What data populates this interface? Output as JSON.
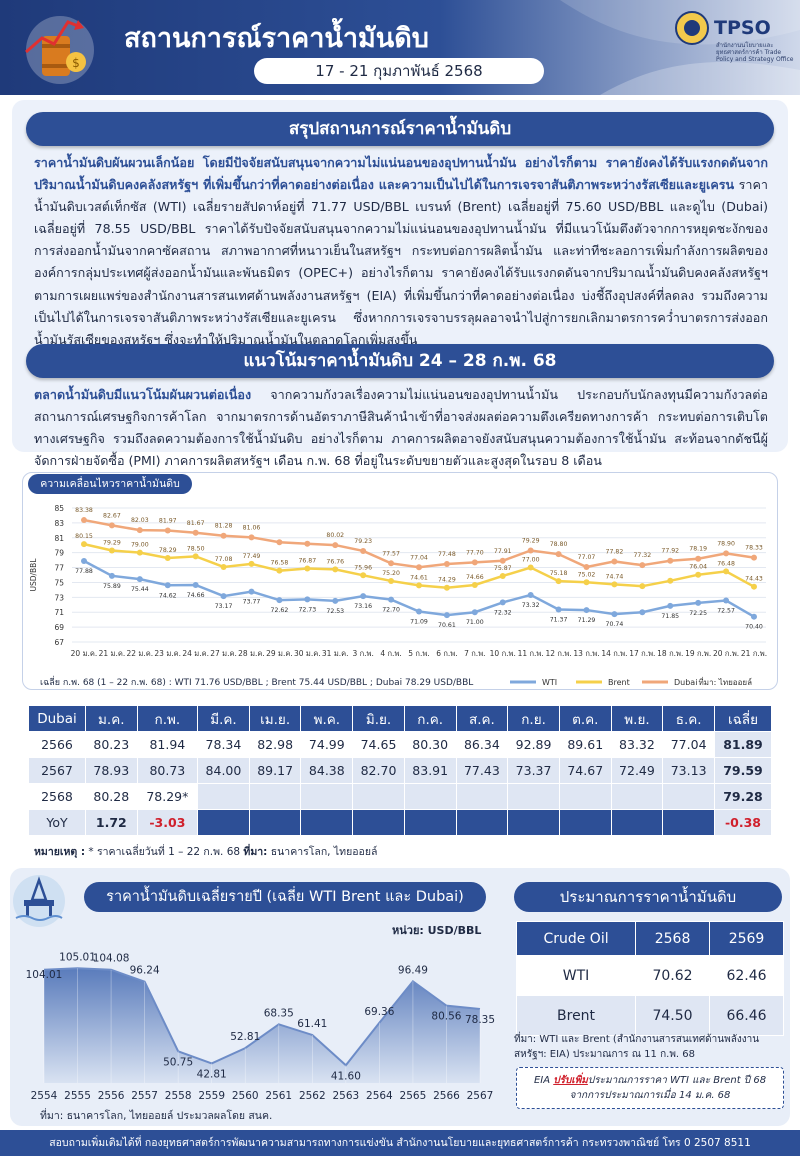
{
  "header": {
    "title": "สถานการณ์ราคาน้ำมันดิบ",
    "date_range": "17 - 21 กุมภาพันธ์ 2568",
    "org_name": "TPSO",
    "org_sub": "สำนักงานนโยบายและยุทธศาสตร์การค้า Trade Policy and Strategy Office"
  },
  "summary": {
    "heading": "สรุปสถานการณ์ราคาน้ำมันดิบ",
    "lead": "ราคาน้ำมันดิบผันผวนเล็กน้อย โดยมีปัจจัยสนับสนุนจากความไม่แน่นอนของอุปทานน้ำมัน อย่างไรก็ตาม ราคายังคงได้รับแรงกดดันจากปริมาณน้ำมันดิบคงคลังสหรัฐฯ ที่เพิ่มขึ้นกว่าที่คาดอย่างต่อเนื่อง และความเป็นไปได้ในการเจรจาสันติภาพระหว่างรัสเซียและยูเครน",
    "body": " ราคาน้ำมันดิบเวสต์เท็กซัส (WTI) เฉลี่ยรายสัปดาห์อยู่ที่ 71.77 USD/BBL เบรนท์ (Brent) เฉลี่ยอยู่ที่ 75.60 USD/BBL และดูไบ (Dubai) เฉลี่ยอยู่ที่ 78.55 USD/BBL ราคาได้รับปัจจัยสนับสนุนจากความไม่แน่นอนของอุปทานน้ำมัน ที่มีแนวโน้มตึงตัวจากการหยุดชะงักของการส่งออกน้ำมันจากคาซัคสถาน สภาพอากาศที่หนาวเย็นในสหรัฐฯ กระทบต่อการผลิตน้ำมัน และท่าทีชะลอการเพิ่มกำลังการผลิตขององค์การกลุ่มประเทศผู้ส่งออกน้ำมันและพันธมิตร (OPEC+) อย่างไรก็ตาม ราคายังคงได้รับแรงกดดันจากปริมาณน้ำมันดิบคงคลังสหรัฐฯ ตามการเผยแพร่ของสำนักงานสารสนเทศด้านพลังงานสหรัฐฯ (EIA) ที่เพิ่มขึ้นกว่าที่คาดอย่างต่อเนื่อง บ่งชี้ถึงอุปสงค์ที่ลดลง รวมถึงความเป็นไปได้ในการเจรจาสันติภาพระหว่างรัสเซียและยูเครน ซึ่งหากการเจรจาบรรลุผลอาจนำไปสู่การยกเลิกมาตรการคว่ำบาตรการส่งออกน้ำมันรัสเซียของสหรัฐฯ ซึ่งจะทำให้ปริมาณน้ำมันในตลาดโลกเพิ่มสูงขึ้น"
  },
  "trend": {
    "heading": "แนวโน้มราคาน้ำมันดิบ 24 – 28 ก.พ. 68",
    "lead": "ตลาดน้ำมันดิบมีแนวโน้มผันผวนต่อเนื่อง",
    "body": " จากความกังวลเรื่องความไม่แน่นอนของอุปทานน้ำมัน ประกอบกับนักลงทุนมีความกังวลต่อสถานการณ์เศรษฐกิจการค้าโลก จากมาตรการด้านอัตราภาษีสินค้านำเข้าที่อาจส่งผลต่อความตึงเครียดทางการค้า กระทบต่อการเติบโตทางเศรษฐกิจ รวมถึงลดความต้องการใช้น้ำมันดิบ อย่างไรก็ตาม ภาคการผลิตอาจยังสนับสนุนความต้องการใช้น้ำมัน สะท้อนจากดัชนีผู้จัดการฝ่ายจัดซื้อ (PMI) ภาคการผลิตสหรัฐฯ เดือน ก.พ. 68 ที่อยู่ในระดับขยายตัวและสูงสุดในรอบ 8 เดือน"
  },
  "chart_note": "เฉลี่ย ก.พ. 68 (1 – 22 ก.พ. 68) : WTI 71.76 USD/BBL ; Brent 75.44 USD/BBL ; Dubai 78.29 USD/BBL",
  "chart_source": "ที่มา: ไทยออยล์",
  "dubai_table": {
    "headers": [
      "Dubai",
      "ม.ค.",
      "ก.พ.",
      "มี.ค.",
      "เม.ย.",
      "พ.ค.",
      "มิ.ย.",
      "ก.ค.",
      "ส.ค.",
      "ก.ย.",
      "ต.ค.",
      "พ.ย.",
      "ธ.ค.",
      "เฉลี่ย"
    ],
    "rows": [
      [
        "2566",
        "80.23",
        "81.94",
        "78.34",
        "82.98",
        "74.99",
        "74.65",
        "80.30",
        "86.34",
        "92.89",
        "89.61",
        "83.32",
        "77.04",
        "81.89"
      ],
      [
        "2567",
        "78.93",
        "80.73",
        "84.00",
        "89.17",
        "84.38",
        "82.70",
        "83.91",
        "77.43",
        "73.37",
        "74.67",
        "72.49",
        "73.13",
        "79.59"
      ],
      [
        "2568",
        "80.28",
        "78.29*",
        "",
        "",
        "",
        "",
        "",
        "",
        "",
        "",
        "",
        "",
        "79.28"
      ],
      [
        "YoY",
        "1.72",
        "-3.03",
        "",
        "",
        "",
        "",
        "",
        "",
        "",
        "",
        "",
        "",
        "-0.38"
      ]
    ],
    "note_label": "หมายเหตุ :",
    "note_text": " * ราคาเฉลี่ยวันที่ 1 – 22 ก.พ. 68 ",
    "source_label": "ที่มา:",
    "source_text": " ธนาคารโลก, ไทยออยล์"
  },
  "annual": {
    "heading": "ราคาน้ำมันดิบเฉลี่ยรายปี (เฉลี่ย WTI Brent และ Dubai)",
    "unit": "หน่วย: USD/BBL",
    "source": "ที่มา: ธนาคารโลก, ไทยออยล์ ประมวลผลโดย สนค."
  },
  "estimate": {
    "heading": "ประมาณการราคาน้ำมันดิบ",
    "headers": [
      "Crude Oil",
      "2568",
      "2569"
    ],
    "rows": [
      [
        "WTI",
        "70.62",
        "62.46"
      ],
      [
        "Brent",
        "74.50",
        "66.46"
      ]
    ],
    "source": "ที่มา: WTI และ Brent (สำนักงานสารสนเทศด้านพลังงานสหรัฐฯ: EIA) ประมาณการ ณ 11 ก.พ. 68",
    "eia_pre": "EIA ",
    "eia_hl": "ปรับเพิ่ม",
    "eia_post": "ประมาณการราคา WTI และ Brent ปี 68",
    "eia_line2": "จากการประมาณการเมื่อ 14 ม.ค. 68"
  },
  "footer": "สอบถามเพิ่มเติมได้ที่ กองยุทธศาสตร์การพัฒนาความสามารถทางการแข่งขัน สำนักงานนโยบายและยุทธศาสตร์การค้า กระทรวงพาณิชย์ โทร 0 2507 8511",
  "colors": {
    "wti": "#7fa8dc",
    "brent": "#f5d04a",
    "dubai": "#f0a77a",
    "navy": "#2d4f96",
    "negative": "#d0202c"
  },
  "chart_data": [
    {
      "type": "line",
      "title": "ความเคลื่อนไหวราคาน้ำมันดิบ",
      "ylabel": "USD/BBL",
      "ylim": [
        67,
        85
      ],
      "yticks": [
        67,
        69,
        71,
        73,
        75,
        77,
        79,
        81,
        83,
        85
      ],
      "legend": "bottom-right",
      "grid": true,
      "categories": [
        "20 ม.ค.",
        "21 ม.ค.",
        "22 ม.ค.",
        "23 ม.ค.",
        "24 ม.ค.",
        "27 ม.ค.",
        "28 ม.ค.",
        "29 ม.ค.",
        "30 ม.ค.",
        "31 ม.ค.",
        "3 ก.พ.",
        "4 ก.พ.",
        "5 ก.พ.",
        "6 ก.พ.",
        "7 ก.พ.",
        "10 ก.พ.",
        "11 ก.พ.",
        "12 ก.พ.",
        "13 ก.พ.",
        "14 ก.พ.",
        "17 ก.พ.",
        "18 ก.พ.",
        "19 ก.พ.",
        "20 ก.พ.",
        "21 ก.พ."
      ],
      "series": [
        {
          "name": "WTI",
          "values": [
            77.88,
            75.89,
            75.44,
            74.62,
            74.66,
            73.17,
            73.77,
            72.62,
            72.73,
            72.53,
            73.16,
            72.7,
            71.09,
            70.61,
            71.0,
            72.32,
            73.32,
            71.37,
            71.29,
            70.74,
            71.0,
            71.85,
            72.25,
            72.57,
            70.4
          ],
          "labels": [
            "77.88",
            "75.89",
            "75.44",
            "74.62",
            "74.66",
            "73.17",
            "73.77",
            "72.62",
            "72.73",
            "72.53",
            "73.16",
            "72.70",
            "71.09",
            "70.61",
            "71.00",
            "72.32",
            "73.32",
            "71.37",
            "71.29",
            "70.74",
            "",
            "71.85",
            "72.25",
            "72.57",
            "70.40"
          ]
        },
        {
          "name": "Brent",
          "values": [
            80.15,
            79.29,
            79.0,
            78.29,
            78.5,
            77.08,
            77.49,
            76.58,
            76.87,
            76.76,
            75.96,
            75.2,
            74.61,
            74.29,
            74.66,
            75.87,
            77.0,
            75.18,
            75.02,
            74.74,
            74.5,
            75.22,
            76.04,
            76.48,
            74.43
          ],
          "labels": [
            "80.15",
            "79.29",
            "79.00",
            "78.29",
            "78.50",
            "77.08",
            "77.49",
            "76.58",
            "76.87",
            "76.76",
            "75.96",
            "75.20",
            "74.61",
            "74.29",
            "74.66",
            "75.87",
            "77.00",
            "75.18",
            "75.02",
            "74.74",
            "",
            "",
            "76.04",
            "76.48",
            "74.43"
          ]
        },
        {
          "name": "Dubai",
          "values": [
            83.38,
            82.67,
            82.03,
            81.97,
            81.67,
            81.28,
            81.06,
            80.4,
            80.2,
            80.02,
            79.23,
            77.57,
            77.04,
            77.48,
            77.7,
            77.91,
            79.29,
            78.8,
            77.07,
            77.82,
            77.32,
            77.92,
            78.19,
            78.9,
            78.33
          ],
          "labels": [
            "83.38",
            "82.67",
            "82.03",
            "81.97",
            "81.67",
            "81.28",
            "81.06",
            "",
            "",
            "80.02",
            "79.23",
            "77.57",
            "77.04",
            "77.48",
            "77.70",
            "77.91",
            "79.29",
            "78.80",
            "77.07",
            "77.82",
            "77.32",
            "77.92",
            "78.19",
            "78.90",
            "78.33"
          ]
        }
      ]
    },
    {
      "type": "area",
      "title": "ราคาน้ำมันดิบเฉลี่ยรายปี (เฉลี่ย WTI Brent และ Dubai)",
      "ylabel": "USD/BBL",
      "ylim": [
        30,
        115
      ],
      "categories": [
        "2554",
        "2555",
        "2556",
        "2557",
        "2558",
        "2559",
        "2560",
        "2561",
        "2562",
        "2563",
        "2564",
        "2565",
        "2566",
        "2567"
      ],
      "values": [
        104.01,
        105.01,
        104.08,
        96.24,
        50.75,
        42.81,
        52.81,
        68.35,
        61.41,
        41.6,
        69.36,
        96.49,
        80.56,
        78.35
      ]
    }
  ]
}
